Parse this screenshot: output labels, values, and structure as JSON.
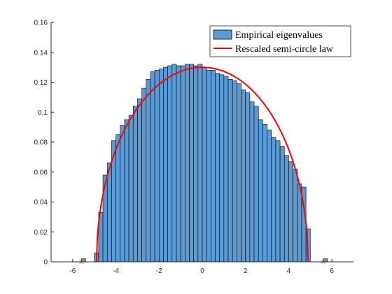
{
  "chart_data": {
    "type": "bar",
    "xlim": [
      -7,
      7
    ],
    "ylim": [
      0,
      0.16
    ],
    "xticks": [
      -6,
      -4,
      -2,
      0,
      2,
      4,
      6
    ],
    "xtick_labels": [
      "-6",
      "-4",
      "-2",
      "0",
      "2",
      "4",
      "6"
    ],
    "yticks": [
      0,
      0.02,
      0.04,
      0.06,
      0.08,
      0.1,
      0.12,
      0.14,
      0.16
    ],
    "ytick_labels": [
      "0",
      "0.02",
      "0.04",
      "0.06",
      "0.08",
      "0.1",
      "0.12",
      "0.14",
      "0.16"
    ],
    "grid": false,
    "legend_position": "top-right",
    "bin_width": 0.2,
    "histogram": {
      "name": "Empirical eigenvalues",
      "color": "#5b9bd5",
      "bin_left_edges": [
        -5.6,
        -5.0,
        -4.8,
        -4.6,
        -4.4,
        -4.2,
        -4.0,
        -3.8,
        -3.6,
        -3.4,
        -3.2,
        -3.0,
        -2.8,
        -2.6,
        -2.4,
        -2.2,
        -2.0,
        -1.8,
        -1.6,
        -1.4,
        -1.2,
        -1.0,
        -0.8,
        -0.6,
        -0.4,
        -0.2,
        0.0,
        0.2,
        0.4,
        0.6,
        0.8,
        1.0,
        1.2,
        1.4,
        1.6,
        1.8,
        2.0,
        2.2,
        2.4,
        2.6,
        2.8,
        3.0,
        3.2,
        3.4,
        3.6,
        3.8,
        4.0,
        4.2,
        4.4,
        4.6,
        4.8,
        5.6
      ],
      "values": [
        0.002,
        0.006,
        0.033,
        0.058,
        0.066,
        0.081,
        0.085,
        0.091,
        0.095,
        0.098,
        0.104,
        0.109,
        0.116,
        0.122,
        0.127,
        0.128,
        0.129,
        0.13,
        0.131,
        0.132,
        0.131,
        0.131,
        0.132,
        0.132,
        0.131,
        0.132,
        0.13,
        0.128,
        0.128,
        0.126,
        0.125,
        0.124,
        0.122,
        0.121,
        0.119,
        0.115,
        0.113,
        0.107,
        0.104,
        0.095,
        0.092,
        0.088,
        0.083,
        0.081,
        0.077,
        0.071,
        0.067,
        0.062,
        0.052,
        0.05,
        0.022,
        0.002
      ]
    },
    "curve": {
      "name": "Rescaled semi-circle law",
      "color": "#ff0000",
      "radius": 4.9,
      "peak": 0.13
    },
    "edge_markers": {
      "color": "#ff6a00",
      "x": [
        -5.6,
        5.6
      ],
      "y": [
        0,
        0
      ]
    },
    "legend": {
      "entries": [
        "Empirical eigenvalues",
        "Rescaled semi-circle law"
      ]
    }
  }
}
